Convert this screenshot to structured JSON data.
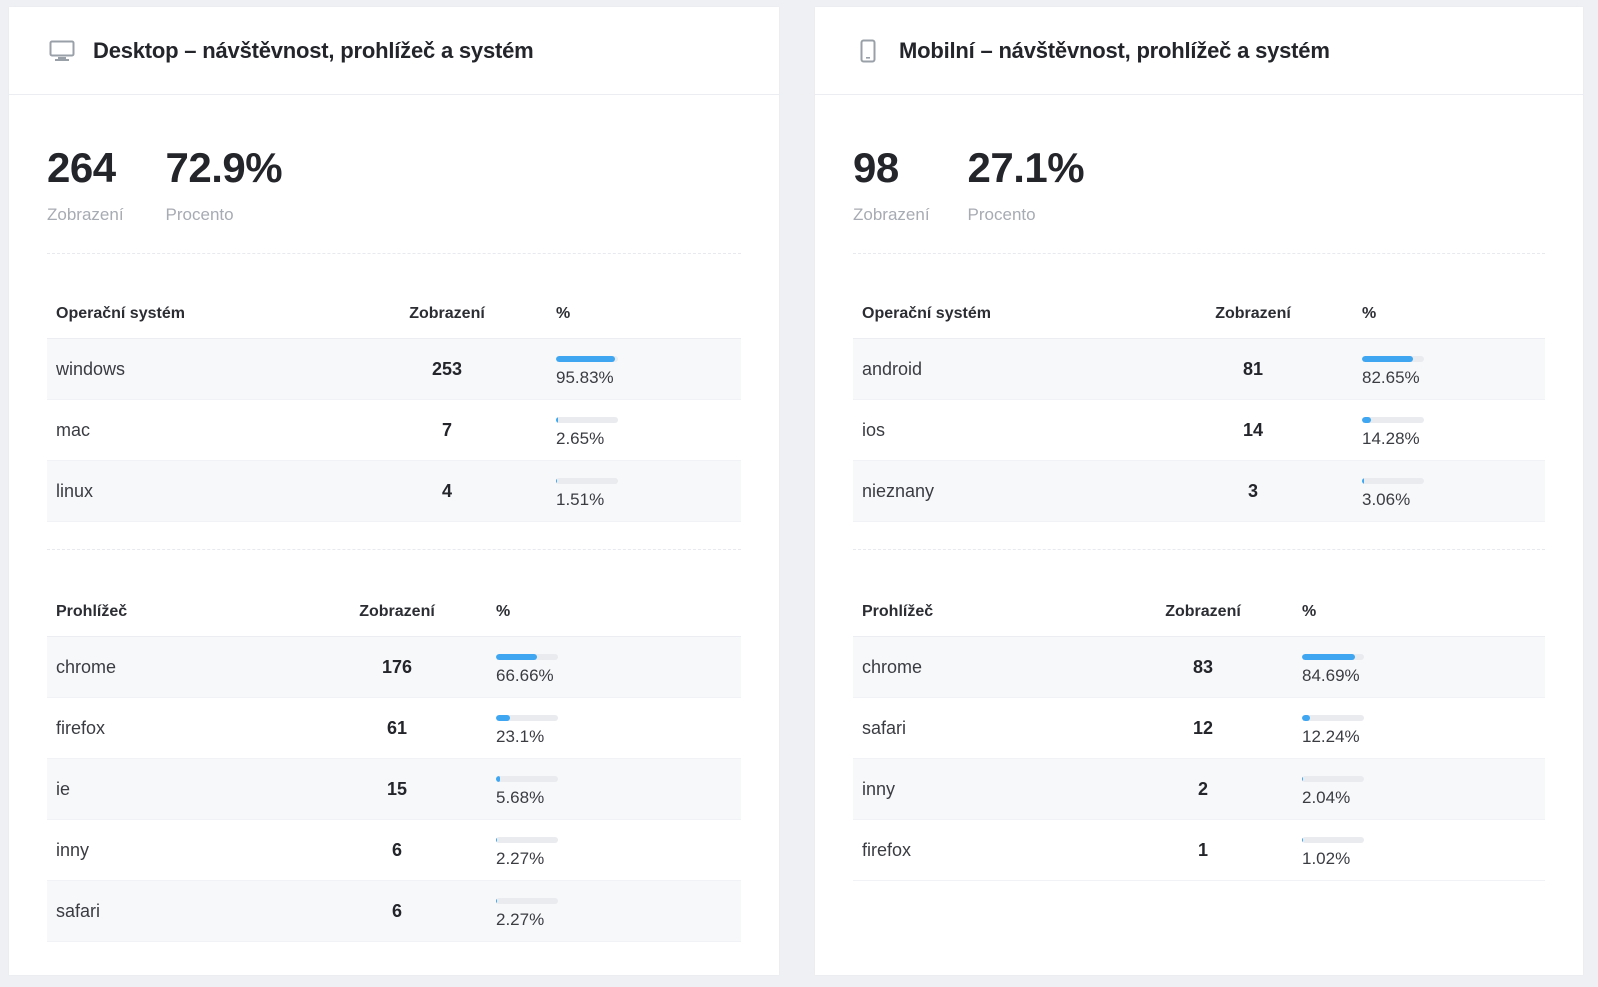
{
  "colors": {
    "accent": "#3fa6f2",
    "track": "#e9ebef",
    "muted": "#a7abb3"
  },
  "desktop": {
    "icon": "monitor-icon",
    "title": "Desktop – návštěvnost, prohlížeč a systém",
    "views": "264",
    "views_label": "Zobrazení",
    "percent": "72.9%",
    "percent_label": "Procento",
    "os": {
      "headers": [
        "Operační systém",
        "Zobrazení",
        "%"
      ],
      "rows": [
        {
          "name": "windows",
          "views": "253",
          "pct": "95.83%",
          "fraction": 0.9583
        },
        {
          "name": "mac",
          "views": "7",
          "pct": "2.65%",
          "fraction": 0.0265
        },
        {
          "name": "linux",
          "views": "4",
          "pct": "1.51%",
          "fraction": 0.0151
        }
      ]
    },
    "browser": {
      "headers": [
        "Prohlížeč",
        "Zobrazení",
        "%"
      ],
      "rows": [
        {
          "name": "chrome",
          "views": "176",
          "pct": "66.66%",
          "fraction": 0.6666
        },
        {
          "name": "firefox",
          "views": "61",
          "pct": "23.1%",
          "fraction": 0.231
        },
        {
          "name": "ie",
          "views": "15",
          "pct": "5.68%",
          "fraction": 0.0568
        },
        {
          "name": "inny",
          "views": "6",
          "pct": "2.27%",
          "fraction": 0.0227
        },
        {
          "name": "safari",
          "views": "6",
          "pct": "2.27%",
          "fraction": 0.0227
        }
      ]
    }
  },
  "mobile": {
    "icon": "smartphone-icon",
    "title": "Mobilní – návštěvnost, prohlížeč a systém",
    "views": "98",
    "views_label": "Zobrazení",
    "percent": "27.1%",
    "percent_label": "Procento",
    "os": {
      "headers": [
        "Operační systém",
        "Zobrazení",
        "%"
      ],
      "rows": [
        {
          "name": "android",
          "views": "81",
          "pct": "82.65%",
          "fraction": 0.8265
        },
        {
          "name": "ios",
          "views": "14",
          "pct": "14.28%",
          "fraction": 0.1428
        },
        {
          "name": "nieznany",
          "views": "3",
          "pct": "3.06%",
          "fraction": 0.0306
        }
      ]
    },
    "browser": {
      "headers": [
        "Prohlížeč",
        "Zobrazení",
        "%"
      ],
      "rows": [
        {
          "name": "chrome",
          "views": "83",
          "pct": "84.69%",
          "fraction": 0.8469
        },
        {
          "name": "safari",
          "views": "12",
          "pct": "12.24%",
          "fraction": 0.1224
        },
        {
          "name": "inny",
          "views": "2",
          "pct": "2.04%",
          "fraction": 0.0204
        },
        {
          "name": "firefox",
          "views": "1",
          "pct": "1.02%",
          "fraction": 0.0102
        }
      ]
    }
  }
}
